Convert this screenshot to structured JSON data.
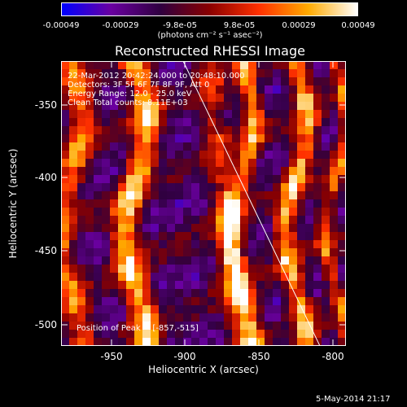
{
  "colorbar": {
    "tick_labels": [
      "-0.00049",
      "-0.00029",
      "-9.8e-05",
      "9.8e-05",
      "0.00029",
      "0.00049"
    ],
    "units": "(photons cm⁻² s⁻¹ asec⁻²)",
    "colors": [
      "#0000ff",
      "#6a00a0",
      "#300040",
      "#8a0000",
      "#ff3000",
      "#ffaa00",
      "#ffffff"
    ]
  },
  "image": {
    "title": "Reconstructed RHESSI Image",
    "info_lines": [
      "22-Mar-2012 20:42:24.000 to 20:48:10.000",
      "Detectors: 3F 5F 6F 7F 8F 9F, Att 0",
      "Energy Range: 12.0 - 25.0 keV",
      "Clean     Total counts: 8.11E+03"
    ],
    "peak_label": "Position of Peak = [-857,-515]"
  },
  "axes": {
    "x_title": "Heliocentric X (arcsec)",
    "y_title": "Heliocentric Y (arcsec)",
    "x_ticks": [
      "-950",
      "-900",
      "-850",
      "-800"
    ],
    "y_ticks": [
      "-350",
      "-400",
      "-450",
      "-500"
    ]
  },
  "footer": {
    "date": "5-May-2014 21:17"
  }
}
